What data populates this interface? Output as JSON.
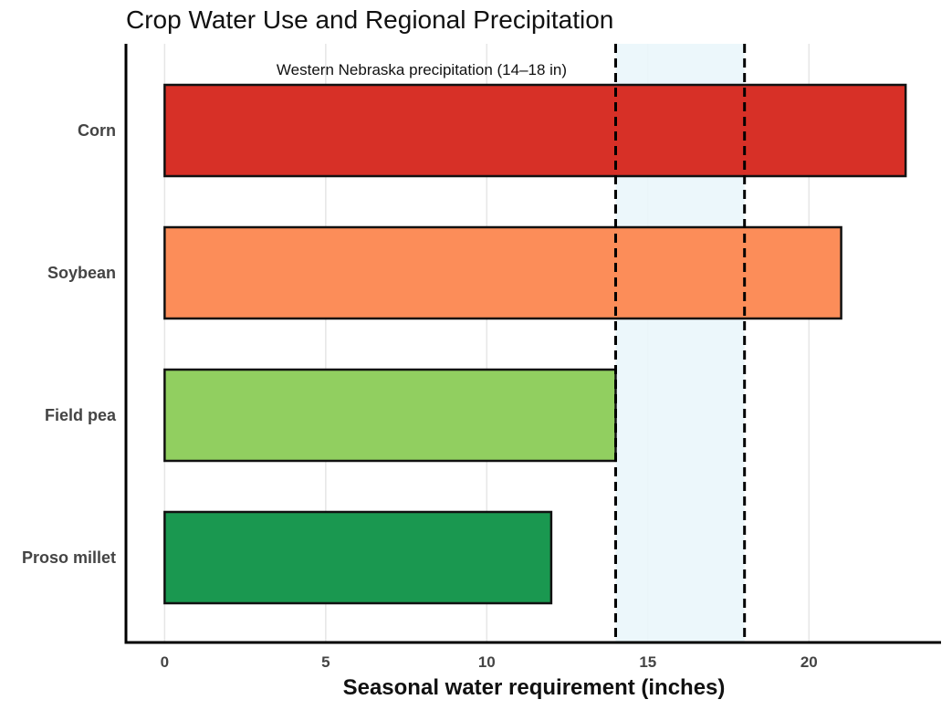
{
  "chart_data": {
    "type": "bar",
    "orientation": "horizontal",
    "title": "Crop Water Use and Regional Precipitation",
    "xlabel": "Seasonal water requirement (inches)",
    "ylabel": "",
    "xlim": [
      -1.2,
      24.1
    ],
    "xticks": [
      0,
      5,
      10,
      15,
      20
    ],
    "grid": "vertical",
    "categories": [
      "Corn",
      "Soybean",
      "Field pea",
      "Proso millet"
    ],
    "values": [
      23,
      21,
      14,
      12
    ],
    "colors": [
      "#d73027",
      "#fc8d59",
      "#91cf60",
      "#1a9850"
    ],
    "reference_band": {
      "label": "Western Nebraska precipitation (14–18 in)",
      "from": 14,
      "to": 18,
      "fill": "#eaf6fb",
      "line_style": "dashed"
    }
  }
}
